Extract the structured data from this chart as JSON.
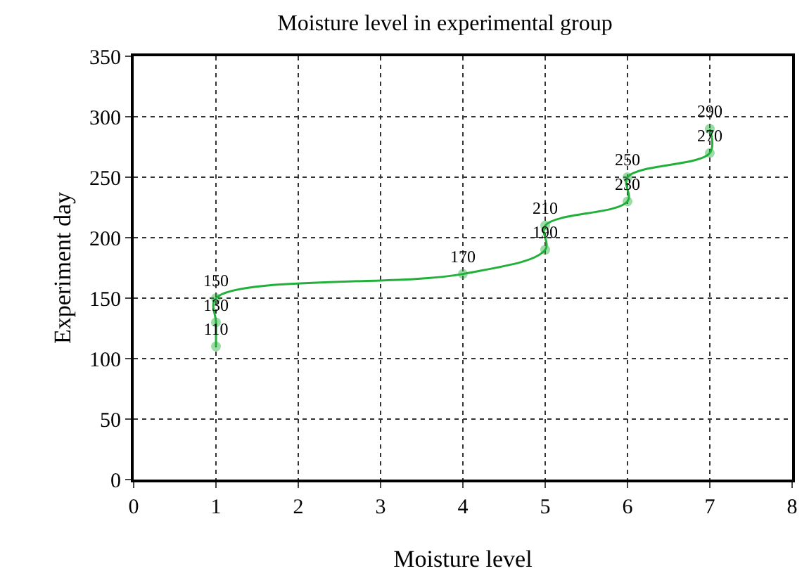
{
  "chart_data": {
    "type": "line",
    "title": "Moisture level in experimental group",
    "xlabel": "Moisture level",
    "ylabel": "Experiment day",
    "x": [
      1,
      1,
      1,
      4,
      5,
      5,
      6,
      6,
      7,
      7
    ],
    "series": [
      {
        "color": "#22b03a",
        "values": [
          110,
          130,
          150,
          170,
          190,
          210,
          230,
          250,
          270,
          290
        ]
      }
    ],
    "xlim": [
      0,
      8
    ],
    "xticks": [
      0,
      1,
      2,
      3,
      4,
      5,
      6,
      7,
      8
    ],
    "ylim": [
      0,
      350
    ],
    "yticks": [
      0,
      50,
      100,
      150,
      200,
      250,
      300,
      350
    ],
    "grid": true,
    "marker": "circle",
    "line_style": "solid",
    "data_labels": true
  }
}
